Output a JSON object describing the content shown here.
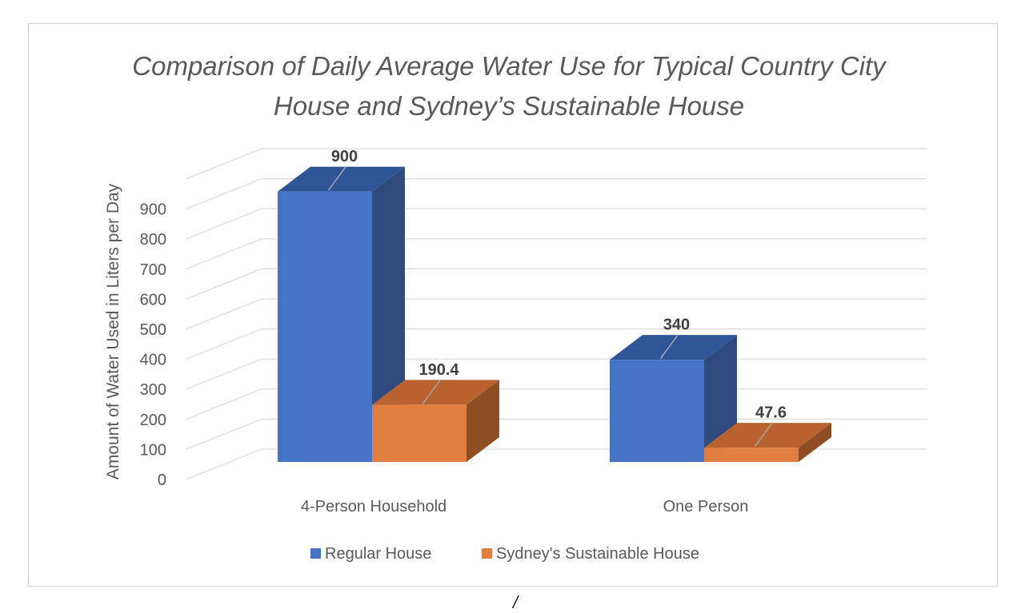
{
  "chart_data": {
    "type": "bar",
    "title": "Comparison of Daily Average Water Use for Typical Country City House and Sydney’s Sustainable House",
    "ylabel": "Amount of Water Used in Liters per Day",
    "xlabel": "",
    "categories": [
      "4-Person Household",
      "One Person"
    ],
    "series": [
      {
        "name": "Regular House",
        "values": [
          900,
          340
        ],
        "data_labels": [
          "900",
          "340"
        ],
        "color": "#4472c4",
        "top_color": "#2f5597",
        "side_color": "#2f4a7e"
      },
      {
        "name": "Sydney's Sustainable House",
        "values": [
          190.4,
          47.6
        ],
        "data_labels": [
          "190.4",
          "47.6"
        ],
        "color": "#e07f3f",
        "top_color": "#b8622e",
        "side_color": "#8f4d23"
      }
    ],
    "ylim": [
      0,
      1000
    ],
    "yticks": [
      0,
      100,
      200,
      300,
      400,
      500,
      600,
      700,
      800,
      900
    ],
    "ytick_labels": [
      "0",
      "100",
      "200",
      "300",
      "400",
      "500",
      "600",
      "700",
      "800",
      "900"
    ],
    "grid": true,
    "legend": "bottom",
    "projection": "3d-clustered"
  },
  "footer_mark": "/"
}
